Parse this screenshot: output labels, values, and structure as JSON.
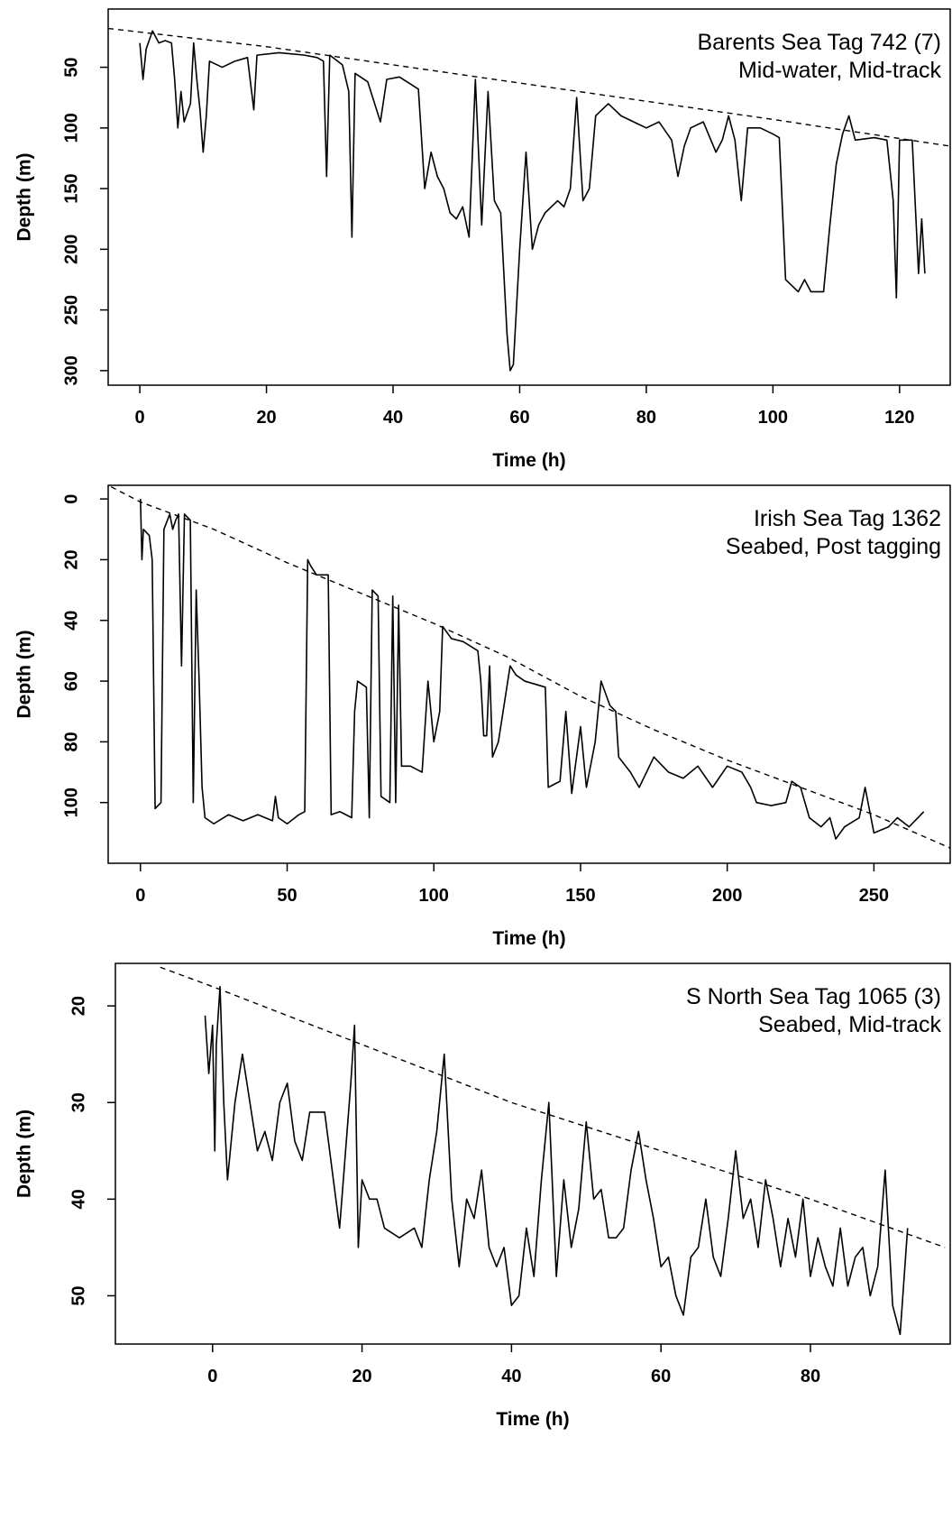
{
  "chart_data": [
    {
      "type": "line",
      "xlabel": "Time (h)",
      "ylabel": "Depth (m)",
      "annotations": [
        "Barents Sea Tag 742 (7)",
        "Mid-water, Mid-track"
      ],
      "xlim": [
        -5,
        128
      ],
      "ylim": [
        2,
        312
      ],
      "invert_y": true,
      "xticks": [
        0,
        20,
        40,
        60,
        80,
        100,
        120
      ],
      "yticks": [
        50,
        100,
        150,
        200,
        250,
        300
      ],
      "series": [
        {
          "color": "#000000",
          "dashed": false,
          "x": [
            0,
            0.5,
            1,
            2,
            3,
            4,
            5,
            5.5,
            6,
            6.5,
            7,
            8,
            8.5,
            9,
            9.5,
            10,
            10.5,
            11,
            13,
            15,
            17,
            18,
            18.5,
            22,
            26,
            28,
            29,
            29.5,
            30,
            32,
            33,
            33.5,
            34,
            36,
            38,
            39,
            41,
            44,
            45,
            46,
            47,
            48,
            49,
            50,
            51,
            52,
            53,
            54,
            55,
            56,
            57,
            58,
            58.5,
            59,
            60,
            61,
            62,
            63,
            64,
            66,
            67,
            68,
            69,
            70,
            71,
            72,
            74,
            76,
            78,
            80,
            82,
            84,
            85,
            86,
            87,
            89,
            91,
            92,
            93,
            94,
            95,
            96,
            98,
            100,
            101,
            102,
            104,
            105,
            106,
            108,
            109,
            110,
            111,
            112,
            113,
            116,
            118,
            119,
            119.5,
            120,
            122,
            123,
            123.5,
            124
          ],
          "values": [
            30,
            60,
            35,
            20,
            30,
            28,
            30,
            60,
            100,
            70,
            95,
            80,
            30,
            60,
            85,
            120,
            90,
            45,
            50,
            45,
            42,
            85,
            40,
            38,
            40,
            42,
            45,
            140,
            40,
            48,
            70,
            190,
            55,
            62,
            95,
            60,
            58,
            68,
            150,
            120,
            140,
            150,
            170,
            175,
            165,
            190,
            60,
            180,
            70,
            160,
            170,
            270,
            300,
            295,
            200,
            120,
            200,
            180,
            170,
            160,
            165,
            150,
            75,
            160,
            150,
            90,
            80,
            90,
            95,
            100,
            95,
            110,
            140,
            115,
            100,
            95,
            120,
            110,
            90,
            110,
            160,
            100,
            100,
            105,
            108,
            225,
            235,
            225,
            235,
            235,
            180,
            130,
            105,
            90,
            110,
            108,
            110,
            160,
            240,
            110,
            110,
            220,
            175,
            220
          ]
        },
        {
          "color": "#000000",
          "dashed": true,
          "x": [
            -5,
            20,
            40,
            60,
            80,
            100,
            128
          ],
          "values": [
            18,
            33,
            48,
            63,
            78,
            93,
            115
          ]
        }
      ]
    },
    {
      "type": "line",
      "xlabel": "Time (h)",
      "ylabel": "Depth (m)",
      "annotations": [
        "Irish Sea Tag 1362",
        "Seabed, Post tagging"
      ],
      "xlim": [
        -11,
        276
      ],
      "ylim": [
        -4.5,
        120
      ],
      "invert_y": true,
      "xticks": [
        0,
        50,
        100,
        150,
        200,
        250
      ],
      "yticks": [
        0,
        20,
        40,
        60,
        80,
        100
      ],
      "series": [
        {
          "color": "#000000",
          "dashed": false,
          "x": [
            0,
            0.5,
            1,
            3,
            4,
            5,
            7,
            8,
            10,
            11,
            12,
            13,
            14,
            15,
            17,
            18,
            19,
            20,
            21,
            22,
            25,
            30,
            35,
            40,
            45,
            46,
            47,
            50,
            54,
            56,
            57,
            58,
            60,
            64,
            65,
            68,
            72,
            73,
            74,
            77,
            78,
            79,
            81,
            82,
            85,
            86,
            87,
            88,
            89,
            92,
            96,
            98,
            100,
            102,
            103,
            106,
            110,
            115,
            116,
            117,
            118,
            119,
            120,
            122,
            126,
            128,
            131,
            138,
            139,
            143,
            145,
            147,
            150,
            152,
            155,
            157,
            160,
            162,
            163,
            167,
            170,
            175,
            180,
            185,
            190,
            195,
            200,
            205,
            208,
            210,
            215,
            220,
            222,
            225,
            228,
            232,
            235,
            237,
            240,
            245,
            247,
            250,
            255,
            258,
            262,
            265,
            267
          ],
          "values": [
            0,
            20,
            10,
            12,
            20,
            102,
            100,
            10,
            5,
            10,
            7,
            5,
            55,
            5,
            7,
            100,
            30,
            60,
            95,
            105,
            107,
            104,
            106,
            104,
            106,
            98,
            105,
            107,
            104,
            103,
            20,
            22,
            25,
            25,
            104,
            103,
            105,
            70,
            60,
            62,
            105,
            30,
            32,
            98,
            100,
            32,
            100,
            35,
            88,
            88,
            90,
            60,
            80,
            70,
            42,
            46,
            47,
            50,
            60,
            78,
            78,
            55,
            85,
            80,
            55,
            58,
            60,
            62,
            95,
            93,
            70,
            97,
            75,
            95,
            80,
            60,
            68,
            70,
            85,
            90,
            95,
            85,
            90,
            92,
            88,
            95,
            88,
            90,
            95,
            100,
            101,
            100,
            93,
            95,
            105,
            108,
            105,
            112,
            108,
            105,
            95,
            110,
            108,
            105,
            108,
            105,
            103
          ]
        },
        {
          "color": "#000000",
          "dashed": true,
          "x": [
            -10,
            0,
            25,
            50,
            75,
            100,
            125,
            150,
            175,
            200,
            225,
            250,
            276
          ],
          "values": [
            -4,
            1,
            10,
            21,
            31,
            41,
            52,
            65,
            76,
            86,
            95,
            104,
            115
          ]
        }
      ]
    },
    {
      "type": "line",
      "xlabel": "Time (h)",
      "ylabel": "Depth (m)",
      "annotations": [
        "S North Sea Tag 1065 (3)",
        "Seabed, Mid-track"
      ],
      "xlim": [
        -13,
        98.7
      ],
      "ylim": [
        15.6,
        55
      ],
      "invert_y": true,
      "xticks": [
        0,
        20,
        40,
        60,
        80
      ],
      "yticks": [
        20,
        30,
        40,
        50
      ],
      "series": [
        {
          "color": "#000000",
          "dashed": false,
          "x": [
            -1,
            -0.5,
            0,
            0.3,
            0.5,
            1,
            1.5,
            2,
            3,
            4,
            5,
            6,
            7,
            8,
            9,
            10,
            11,
            12,
            13,
            15,
            16,
            17,
            18,
            18.5,
            19,
            19.5,
            20,
            21,
            22,
            23,
            25,
            27,
            28,
            29,
            30,
            31,
            32,
            33,
            34,
            35,
            36,
            37,
            38,
            39,
            40,
            41,
            42,
            43,
            44,
            45,
            46,
            47,
            48,
            49,
            50,
            51,
            52,
            53,
            54,
            55,
            56,
            57,
            58,
            59,
            60,
            61,
            62,
            63,
            64,
            65,
            66,
            67,
            68,
            69,
            70,
            71,
            72,
            73,
            74,
            75,
            76,
            77,
            78,
            79,
            80,
            81,
            82,
            83,
            84,
            85,
            86,
            87,
            88,
            89,
            90,
            91,
            92,
            93
          ],
          "values": [
            21,
            27,
            22,
            35,
            24,
            18,
            30,
            38,
            30,
            25,
            30,
            35,
            33,
            36,
            30,
            28,
            34,
            36,
            31,
            31,
            37,
            43,
            33,
            28,
            22,
            45,
            38,
            40,
            40,
            43,
            44,
            43,
            45,
            38,
            33,
            25,
            40,
            47,
            40,
            42,
            37,
            45,
            47,
            45,
            51,
            50,
            43,
            48,
            38,
            30,
            48,
            38,
            45,
            41,
            32,
            40,
            39,
            44,
            44,
            43,
            37,
            33,
            38,
            42,
            47,
            46,
            50,
            52,
            46,
            45,
            40,
            46,
            48,
            42,
            35,
            42,
            40,
            45,
            38,
            42,
            47,
            42,
            46,
            40,
            48,
            44,
            47,
            49,
            43,
            49,
            46,
            45,
            50,
            47,
            37,
            51,
            54,
            43
          ]
        },
        {
          "color": "#000000",
          "dashed": true,
          "x": [
            -7,
            0,
            20,
            40,
            60,
            80,
            98
          ],
          "values": [
            16,
            18,
            24,
            30,
            35,
            40,
            45
          ]
        }
      ]
    }
  ]
}
